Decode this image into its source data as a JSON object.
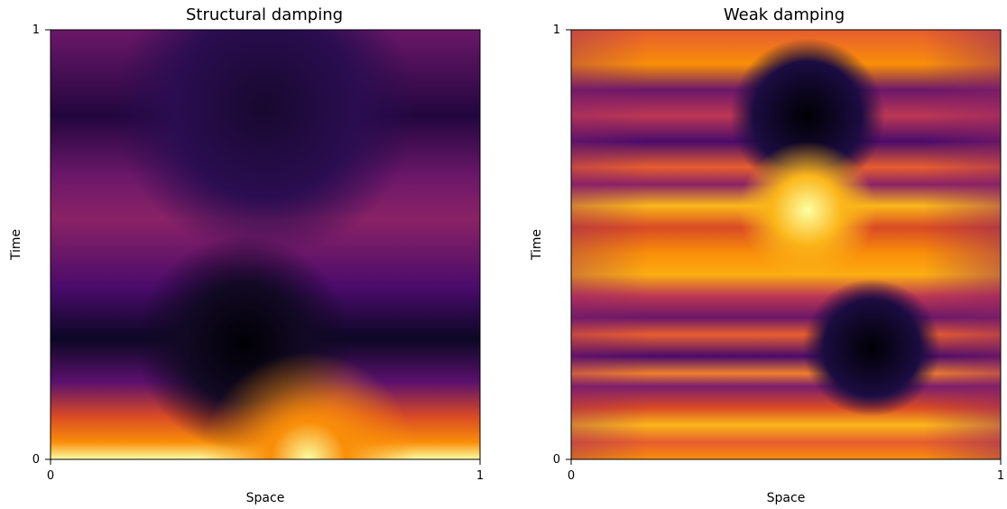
{
  "chart_data": [
    {
      "type": "heatmap",
      "title": "Structural damping",
      "xlabel": "Space",
      "ylabel": "Time",
      "xlim": [
        0,
        1
      ],
      "ylim": [
        0,
        1
      ],
      "xticks": [
        "0",
        "1"
      ],
      "yticks": [
        "0",
        "1"
      ],
      "colormap": "inferno",
      "grid": false
    },
    {
      "type": "heatmap",
      "title": "Weak damping",
      "xlabel": "Space",
      "ylabel": "Time",
      "xlim": [
        0,
        1
      ],
      "ylim": [
        0,
        1
      ],
      "xticks": [
        "0",
        "1"
      ],
      "yticks": [
        "0",
        "1"
      ],
      "colormap": "inferno",
      "grid": false
    }
  ]
}
